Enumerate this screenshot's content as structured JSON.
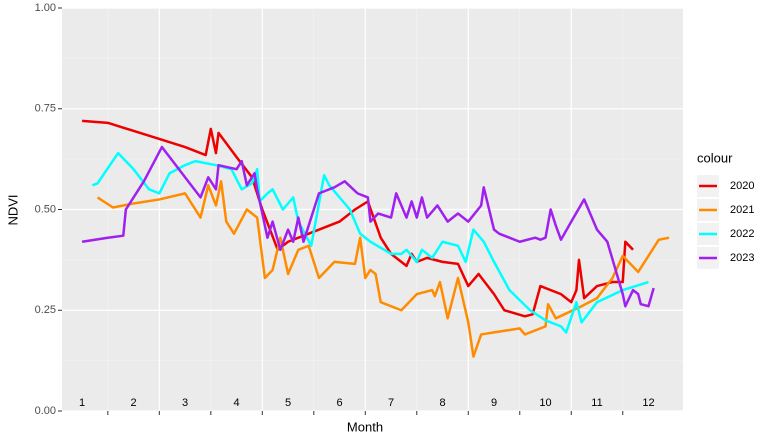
{
  "chart_data": {
    "type": "line",
    "x_label": "Month",
    "y_label": "NDVI",
    "legend_title": "colour",
    "xlim": [
      0.61,
      12.67
    ],
    "ylim": [
      0,
      1
    ],
    "yticks": [
      {
        "value": 0,
        "label": "0.00"
      },
      {
        "value": 0.25,
        "label": "0.25"
      },
      {
        "value": 0.5,
        "label": "0.50"
      },
      {
        "value": 0.75,
        "label": "0.75"
      },
      {
        "value": 1,
        "label": "1.00"
      }
    ],
    "yminor": [
      0.125,
      0.375,
      0.625,
      0.875
    ],
    "xgrid_major": [
      2.5,
      4.5,
      6.5,
      8.5,
      10.5
    ],
    "xgrid_minor": [
      1.5,
      3.5,
      5.5,
      7.5,
      9.5,
      11.5
    ],
    "month_labels": [
      1,
      2,
      3,
      4,
      5,
      6,
      7,
      8,
      9,
      10,
      11,
      12
    ],
    "grid": true,
    "series": [
      {
        "name": "2020",
        "color": "#ee0000",
        "x": [
          1.0,
          1.5,
          2.5,
          3.0,
          3.4,
          3.5,
          3.6,
          3.65,
          4.0,
          4.3,
          4.5,
          4.65,
          4.8,
          5.0,
          5.4,
          6.0,
          6.3,
          6.55,
          6.8,
          7.0,
          7.3,
          7.4,
          7.5,
          7.7,
          8.0,
          8.3,
          8.5,
          8.7,
          9.0,
          9.2,
          9.6,
          9.75,
          9.9,
          10.3,
          10.5,
          10.6,
          10.65,
          10.75,
          11.0,
          11.3,
          11.5,
          11.55,
          11.7
        ],
        "values": [
          0.72,
          0.715,
          0.675,
          0.655,
          0.635,
          0.7,
          0.64,
          0.69,
          0.63,
          0.58,
          0.5,
          0.45,
          0.4,
          0.42,
          0.44,
          0.47,
          0.5,
          0.52,
          0.43,
          0.39,
          0.36,
          0.39,
          0.37,
          0.38,
          0.37,
          0.365,
          0.31,
          0.34,
          0.29,
          0.25,
          0.235,
          0.24,
          0.31,
          0.29,
          0.27,
          0.3,
          0.375,
          0.28,
          0.31,
          0.32,
          0.32,
          0.42,
          0.4
        ]
      },
      {
        "name": "2021",
        "color": "#ff8c00",
        "x": [
          1.3,
          1.6,
          2.0,
          2.5,
          3.0,
          3.3,
          3.45,
          3.6,
          3.7,
          3.8,
          3.95,
          4.2,
          4.4,
          4.55,
          4.7,
          4.85,
          5.0,
          5.2,
          5.4,
          5.6,
          5.9,
          6.3,
          6.4,
          6.5,
          6.6,
          6.7,
          6.8,
          7.2,
          7.5,
          7.8,
          7.85,
          7.95,
          8.1,
          8.3,
          8.5,
          8.6,
          8.75,
          9.0,
          9.5,
          9.6,
          10.0,
          10.05,
          10.2,
          10.7,
          11.0,
          11.3,
          11.5,
          11.8,
          12.2,
          12.4
        ],
        "values": [
          0.53,
          0.505,
          0.515,
          0.525,
          0.54,
          0.48,
          0.56,
          0.51,
          0.57,
          0.47,
          0.44,
          0.5,
          0.48,
          0.33,
          0.35,
          0.43,
          0.34,
          0.4,
          0.41,
          0.33,
          0.37,
          0.365,
          0.43,
          0.33,
          0.35,
          0.34,
          0.27,
          0.25,
          0.29,
          0.3,
          0.285,
          0.32,
          0.23,
          0.33,
          0.22,
          0.135,
          0.19,
          0.195,
          0.205,
          0.19,
          0.21,
          0.265,
          0.23,
          0.26,
          0.28,
          0.33,
          0.385,
          0.345,
          0.425,
          0.43
        ]
      },
      {
        "name": "2022",
        "color": "#00ffff",
        "x": [
          1.2,
          1.3,
          1.7,
          2.0,
          2.3,
          2.5,
          2.7,
          3.0,
          3.2,
          3.6,
          3.9,
          4.1,
          4.3,
          4.4,
          4.45,
          4.6,
          4.7,
          4.9,
          5.1,
          5.2,
          5.45,
          5.7,
          5.8,
          6.2,
          6.4,
          6.6,
          7.0,
          7.2,
          7.3,
          7.5,
          7.6,
          7.8,
          8.0,
          8.3,
          8.45,
          8.6,
          8.8,
          9.0,
          9.3,
          9.7,
          10.0,
          10.3,
          10.4,
          10.6,
          10.7,
          11.0,
          11.5,
          12.0
        ],
        "values": [
          0.56,
          0.565,
          0.64,
          0.6,
          0.55,
          0.54,
          0.59,
          0.61,
          0.62,
          0.61,
          0.6,
          0.55,
          0.565,
          0.6,
          0.52,
          0.54,
          0.55,
          0.5,
          0.53,
          0.47,
          0.41,
          0.585,
          0.56,
          0.5,
          0.44,
          0.42,
          0.39,
          0.39,
          0.4,
          0.37,
          0.4,
          0.38,
          0.42,
          0.41,
          0.37,
          0.45,
          0.42,
          0.37,
          0.3,
          0.25,
          0.225,
          0.21,
          0.195,
          0.27,
          0.22,
          0.27,
          0.3,
          0.32
        ]
      },
      {
        "name": "2023",
        "color": "#a020f0",
        "x": [
          1.0,
          1.5,
          1.8,
          1.85,
          2.2,
          2.55,
          3.0,
          3.3,
          3.45,
          3.6,
          3.65,
          4.0,
          4.1,
          4.2,
          4.35,
          4.4,
          4.6,
          4.7,
          4.85,
          5.0,
          5.1,
          5.2,
          5.3,
          5.6,
          5.9,
          6.1,
          6.35,
          6.55,
          6.6,
          6.75,
          7.0,
          7.1,
          7.3,
          7.4,
          7.5,
          7.6,
          7.7,
          7.9,
          8.1,
          8.3,
          8.4,
          8.5,
          8.75,
          8.8,
          9.0,
          9.1,
          9.5,
          9.8,
          9.9,
          10.0,
          10.1,
          10.2,
          10.3,
          10.5,
          10.75,
          11.0,
          11.2,
          11.5,
          11.55,
          11.7,
          11.8,
          11.85,
          12.0,
          12.1
        ],
        "values": [
          0.42,
          0.43,
          0.435,
          0.5,
          0.57,
          0.655,
          0.58,
          0.53,
          0.58,
          0.55,
          0.61,
          0.6,
          0.62,
          0.56,
          0.59,
          0.55,
          0.43,
          0.47,
          0.4,
          0.45,
          0.42,
          0.48,
          0.42,
          0.54,
          0.555,
          0.57,
          0.54,
          0.53,
          0.47,
          0.49,
          0.48,
          0.54,
          0.48,
          0.52,
          0.48,
          0.53,
          0.48,
          0.51,
          0.47,
          0.49,
          0.48,
          0.47,
          0.51,
          0.555,
          0.45,
          0.44,
          0.42,
          0.43,
          0.425,
          0.43,
          0.5,
          0.46,
          0.425,
          0.47,
          0.525,
          0.45,
          0.42,
          0.29,
          0.26,
          0.3,
          0.29,
          0.265,
          0.26,
          0.305
        ]
      }
    ]
  }
}
